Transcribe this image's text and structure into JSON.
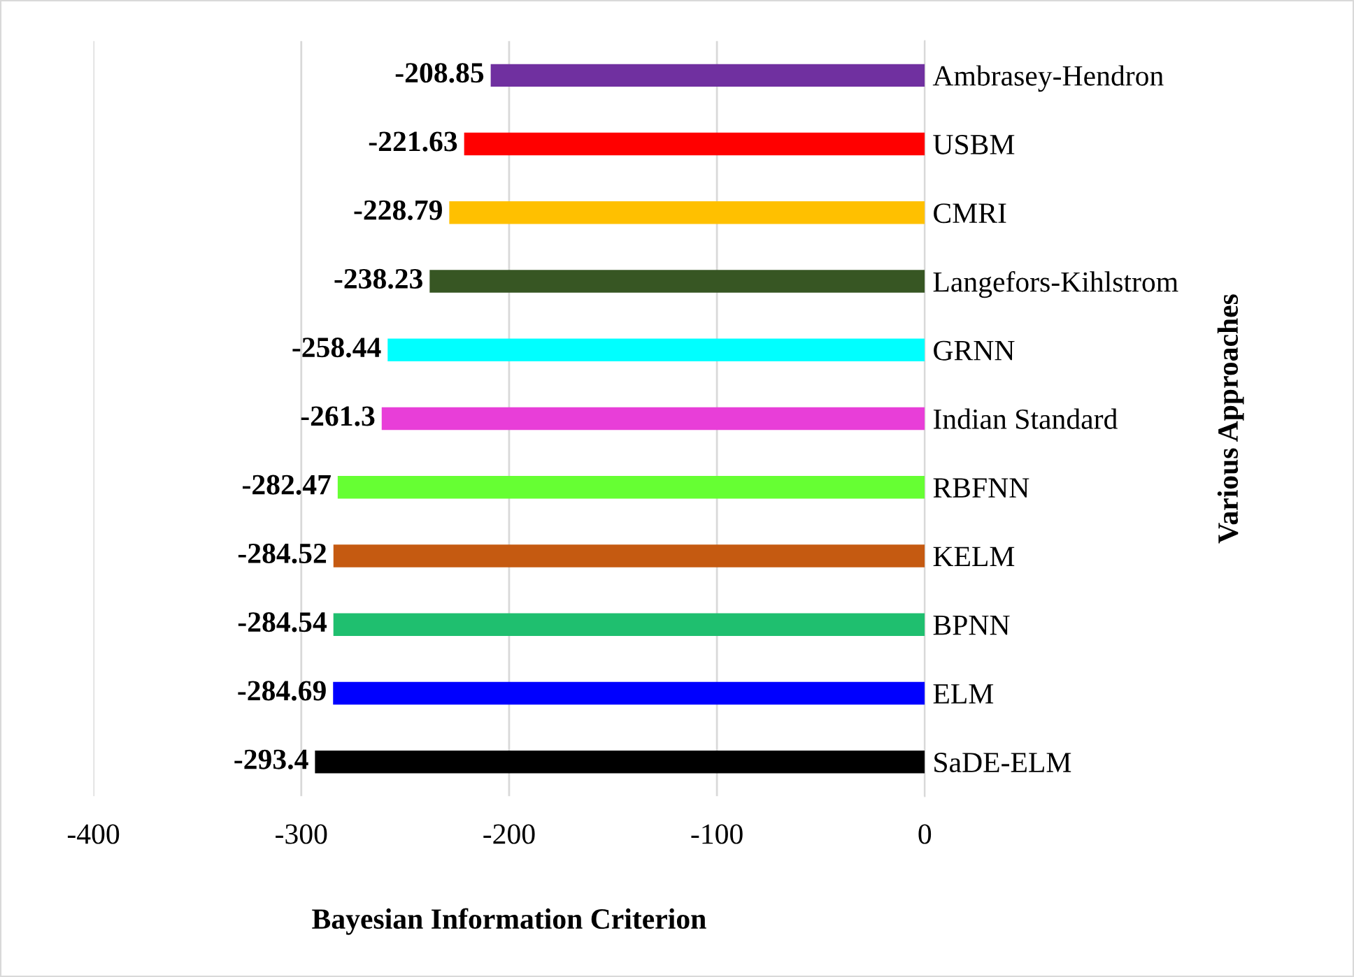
{
  "chart_data": {
    "type": "bar",
    "orientation": "horizontal",
    "xlabel": "Bayesian Information Criterion",
    "ylabel": "Various Approaches",
    "categories": [
      "Ambrasey-Hendron",
      "USBM",
      "CMRI",
      "Langefors-Kihlstrom",
      "GRNN",
      "Indian Standard",
      "RBFNN",
      "KELM",
      "BPNN",
      "ELM",
      "SaDE-ELM"
    ],
    "values": [
      -208.85,
      -221.63,
      -228.79,
      -238.23,
      -258.44,
      -261.3,
      -282.47,
      -284.52,
      -284.54,
      -284.69,
      -293.4
    ],
    "colors": [
      "#7030a0",
      "#ff0000",
      "#ffc000",
      "#375623",
      "#00ffff",
      "#e83ed8",
      "#66ff33",
      "#c55a11",
      "#1fbf6f",
      "#0000ff",
      "#000000"
    ],
    "xlim": [
      -400,
      0
    ],
    "xticks": [
      -400,
      -300,
      -200,
      -100,
      0
    ],
    "grid": "x",
    "data_labels": true
  }
}
